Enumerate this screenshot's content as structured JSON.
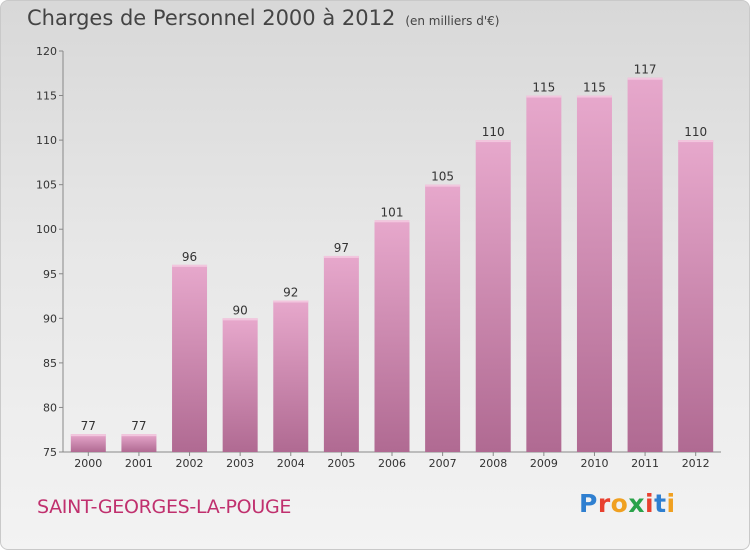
{
  "header": {
    "title": "Charges de Personnel 2000 à 2012",
    "subtitle": "(en milliers d'€)"
  },
  "footer": {
    "commune": "SAINT-GEORGES-LA-POUGE",
    "logo_letters": [
      "P",
      "r",
      "o",
      "x",
      "i",
      "t",
      "i"
    ],
    "logo_colors": [
      "#2f7fd0",
      "#e8402f",
      "#f0a020",
      "#2aa24a",
      "#e8402f",
      "#2f7fd0",
      "#f0a020"
    ]
  },
  "colors": {
    "bar_top": "#e7a8cc",
    "bar_bottom": "#b06a92",
    "commune": "#c0306e"
  },
  "chart_data": {
    "type": "bar",
    "title": "Charges de Personnel 2000 à 2012",
    "subtitle": "(en milliers d'€)",
    "categories": [
      "2000",
      "2001",
      "2002",
      "2003",
      "2004",
      "2005",
      "2006",
      "2007",
      "2008",
      "2009",
      "2010",
      "2011",
      "2012"
    ],
    "values": [
      77,
      77,
      96,
      90,
      92,
      97,
      101,
      105,
      110,
      115,
      115,
      117,
      110
    ],
    "ylim": [
      75,
      120
    ],
    "yticks": [
      75,
      80,
      85,
      90,
      95,
      100,
      105,
      110,
      115,
      120
    ],
    "grid": false,
    "data_labels": true
  }
}
